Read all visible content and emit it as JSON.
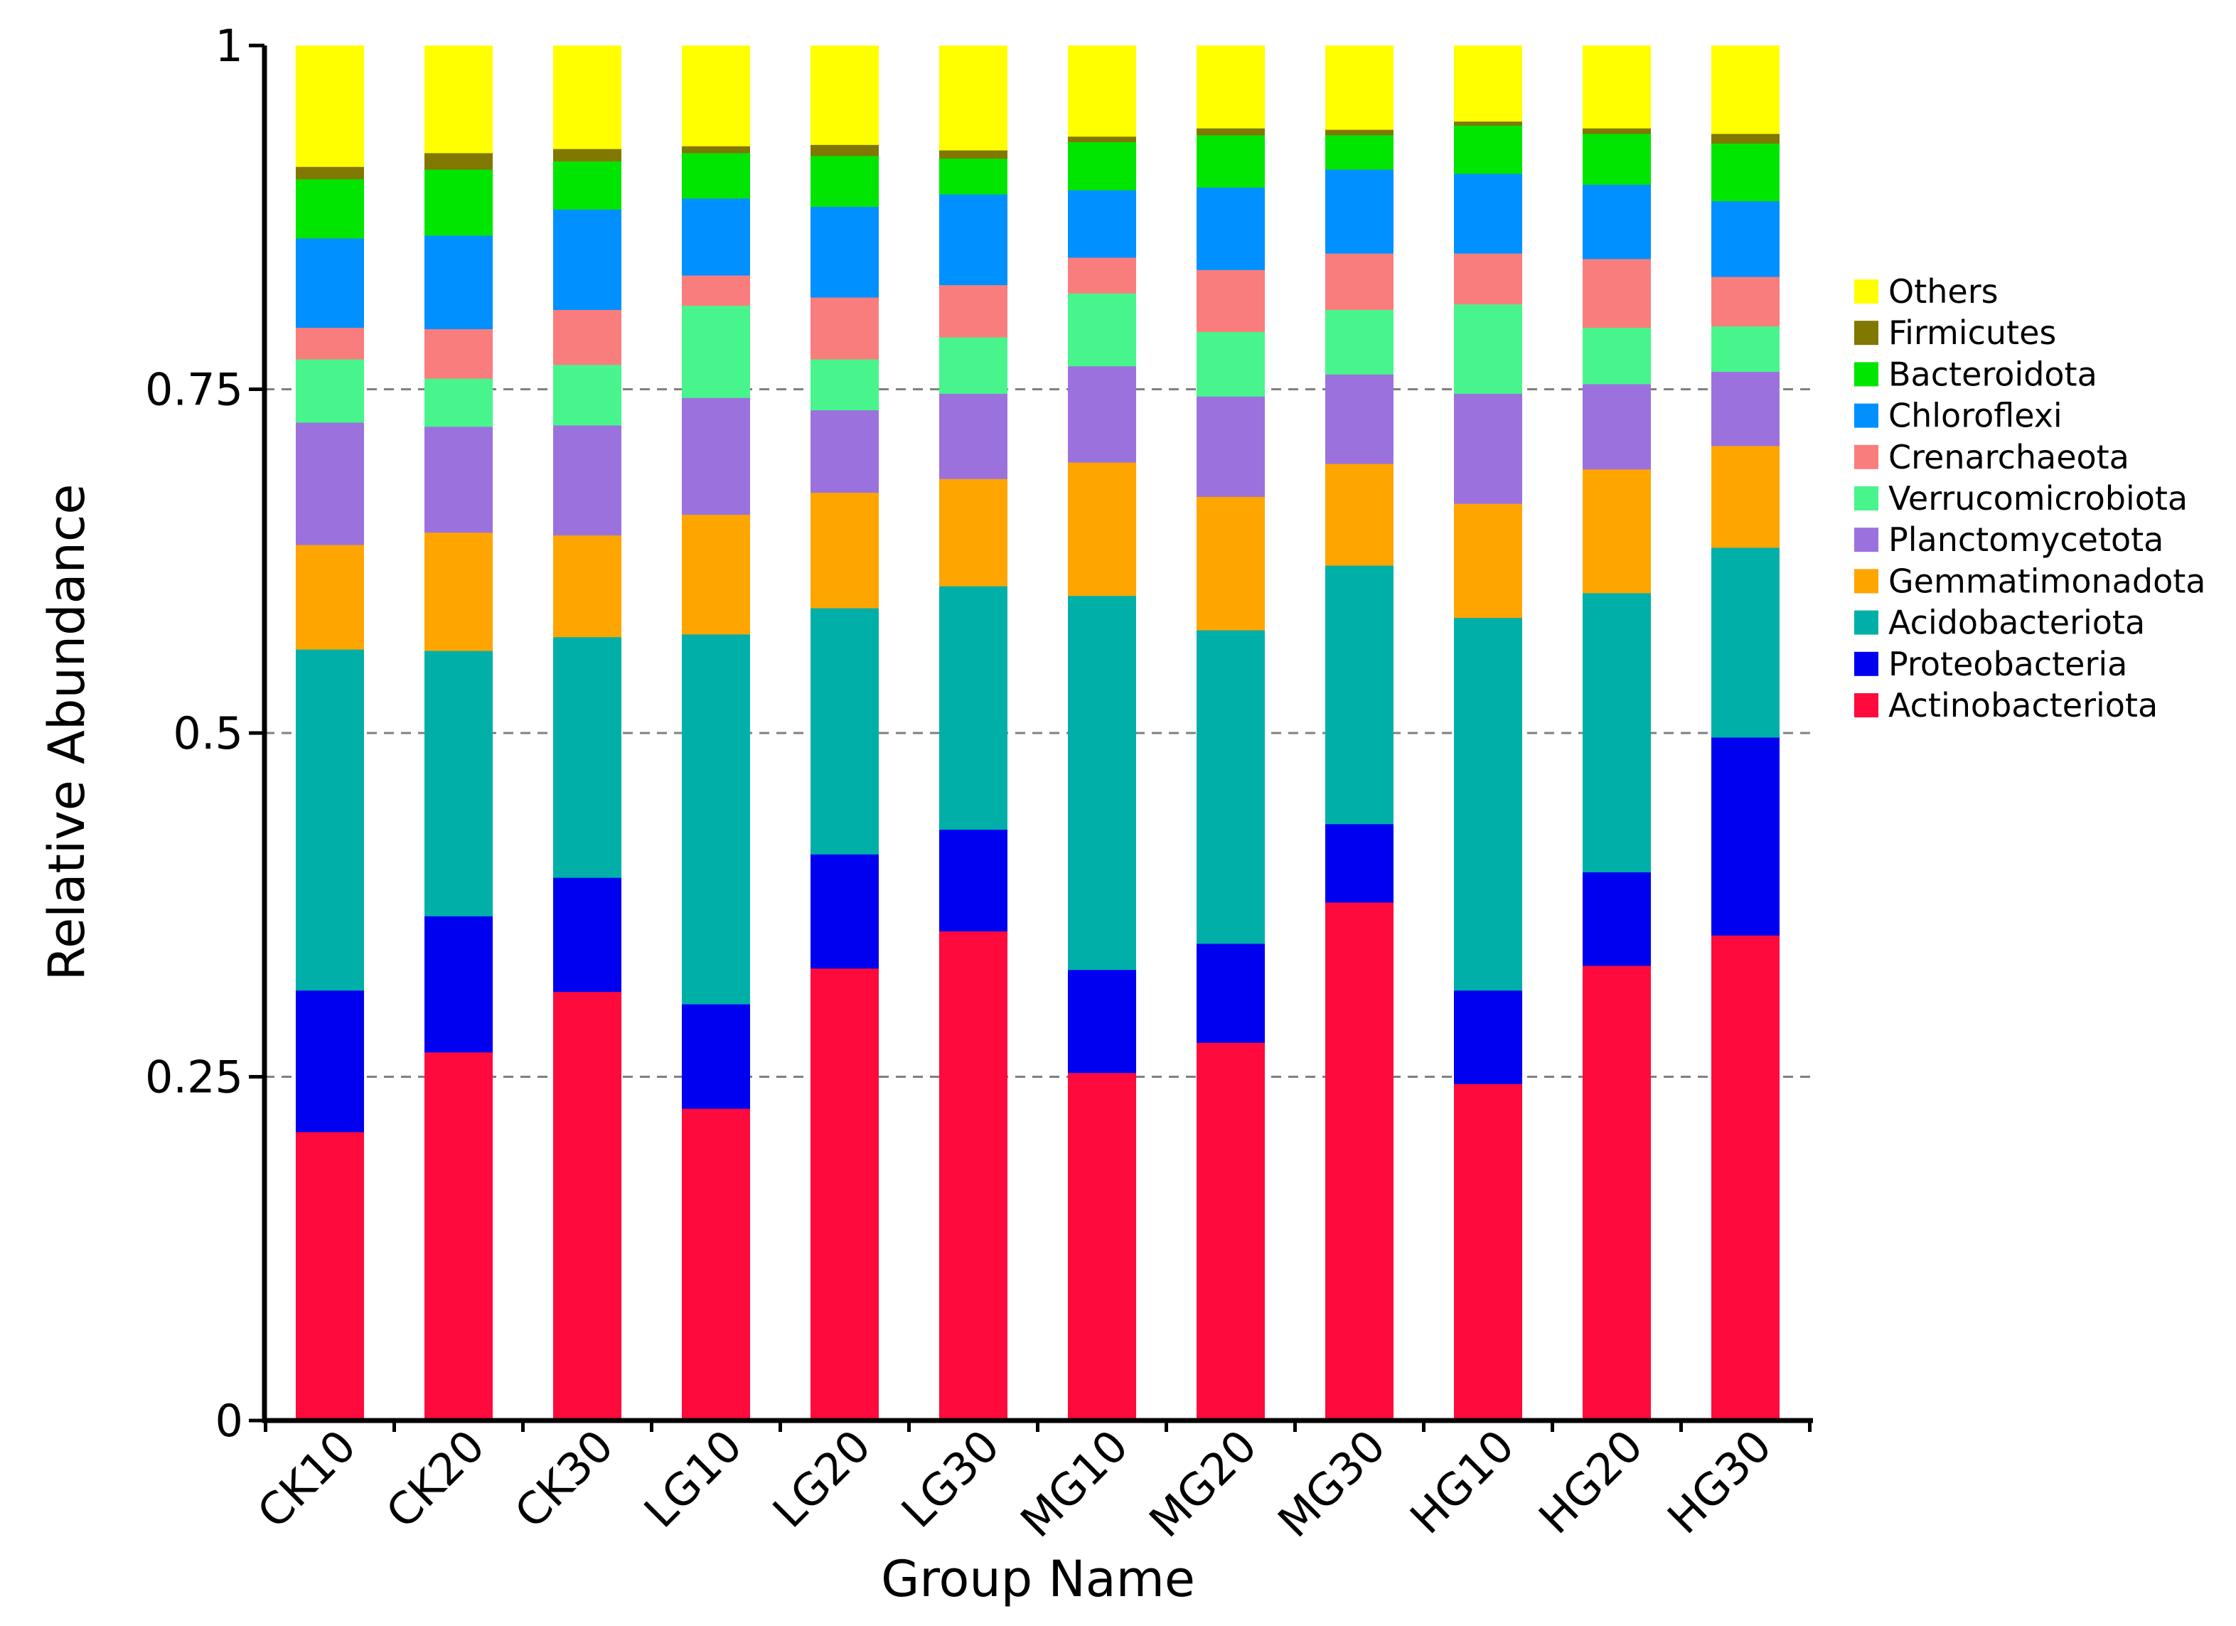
{
  "chart_data": {
    "type": "bar",
    "stacked": true,
    "xlabel": "Group Name",
    "ylabel": "Relative Abundance",
    "ylim": [
      0,
      1
    ],
    "yticks": [
      {
        "value": 0,
        "label": "0"
      },
      {
        "value": 0.25,
        "label": "0.25"
      },
      {
        "value": 0.5,
        "label": "0.5"
      },
      {
        "value": 0.75,
        "label": "0.75"
      },
      {
        "value": 1,
        "label": "1"
      }
    ],
    "gridlines": [
      0.25,
      0.5,
      0.75
    ],
    "legend_position": "right",
    "categories": [
      "CK10",
      "CK20",
      "CK30",
      "LG10",
      "LG20",
      "LG30",
      "MG10",
      "MG20",
      "MG30",
      "HG10",
      "HG20",
      "HG30"
    ],
    "series": [
      {
        "name": "Actinobacteriota",
        "color": "#ff0a3c",
        "values": [
          0.21,
          0.268,
          0.312,
          0.227,
          0.329,
          0.356,
          0.253,
          0.275,
          0.377,
          0.245,
          0.331,
          0.353
        ]
      },
      {
        "name": "Proteobacteria",
        "color": "#0000f0",
        "values": [
          0.103,
          0.099,
          0.083,
          0.076,
          0.083,
          0.074,
          0.075,
          0.072,
          0.057,
          0.068,
          0.068,
          0.144
        ]
      },
      {
        "name": "Acidobacteriota",
        "color": "#00b0a8",
        "values": [
          0.248,
          0.193,
          0.175,
          0.269,
          0.179,
          0.177,
          0.272,
          0.228,
          0.188,
          0.271,
          0.203,
          0.138
        ]
      },
      {
        "name": "Gemmatimonadota",
        "color": "#ffa500",
        "values": [
          0.076,
          0.086,
          0.074,
          0.087,
          0.084,
          0.078,
          0.097,
          0.097,
          0.074,
          0.083,
          0.09,
          0.074
        ]
      },
      {
        "name": "Planctomycetota",
        "color": "#9b72dd",
        "values": [
          0.089,
          0.077,
          0.08,
          0.085,
          0.06,
          0.062,
          0.07,
          0.073,
          0.065,
          0.08,
          0.062,
          0.054
        ]
      },
      {
        "name": "Verrucomicrobiota",
        "color": "#48f58c",
        "values": [
          0.046,
          0.035,
          0.044,
          0.067,
          0.037,
          0.041,
          0.053,
          0.047,
          0.047,
          0.065,
          0.041,
          0.033
        ]
      },
      {
        "name": "Crenarchaeota",
        "color": "#fa7d7d",
        "values": [
          0.023,
          0.036,
          0.04,
          0.022,
          0.045,
          0.038,
          0.026,
          0.045,
          0.041,
          0.037,
          0.05,
          0.036
        ]
      },
      {
        "name": "Chloroflexi",
        "color": "#0090ff",
        "values": [
          0.065,
          0.068,
          0.073,
          0.056,
          0.066,
          0.066,
          0.049,
          0.06,
          0.061,
          0.058,
          0.054,
          0.055
        ]
      },
      {
        "name": "Bacteroidota",
        "color": "#00e600",
        "values": [
          0.043,
          0.048,
          0.035,
          0.033,
          0.037,
          0.026,
          0.035,
          0.038,
          0.025,
          0.035,
          0.037,
          0.042
        ]
      },
      {
        "name": "Firmicutes",
        "color": "#807800",
        "values": [
          0.009,
          0.012,
          0.009,
          0.005,
          0.008,
          0.006,
          0.004,
          0.005,
          0.004,
          0.003,
          0.004,
          0.007
        ]
      },
      {
        "name": "Others",
        "color": "#ffff00",
        "values": [
          0.088,
          0.078,
          0.075,
          0.073,
          0.072,
          0.076,
          0.066,
          0.06,
          0.061,
          0.055,
          0.06,
          0.064
        ]
      }
    ],
    "legend_order": [
      "Others",
      "Firmicutes",
      "Bacteroidota",
      "Chloroflexi",
      "Crenarchaeota",
      "Verrucomicrobiota",
      "Planctomycetota",
      "Gemmatimonadota",
      "Acidobacteriota",
      "Proteobacteria",
      "Actinobacteriota"
    ]
  }
}
